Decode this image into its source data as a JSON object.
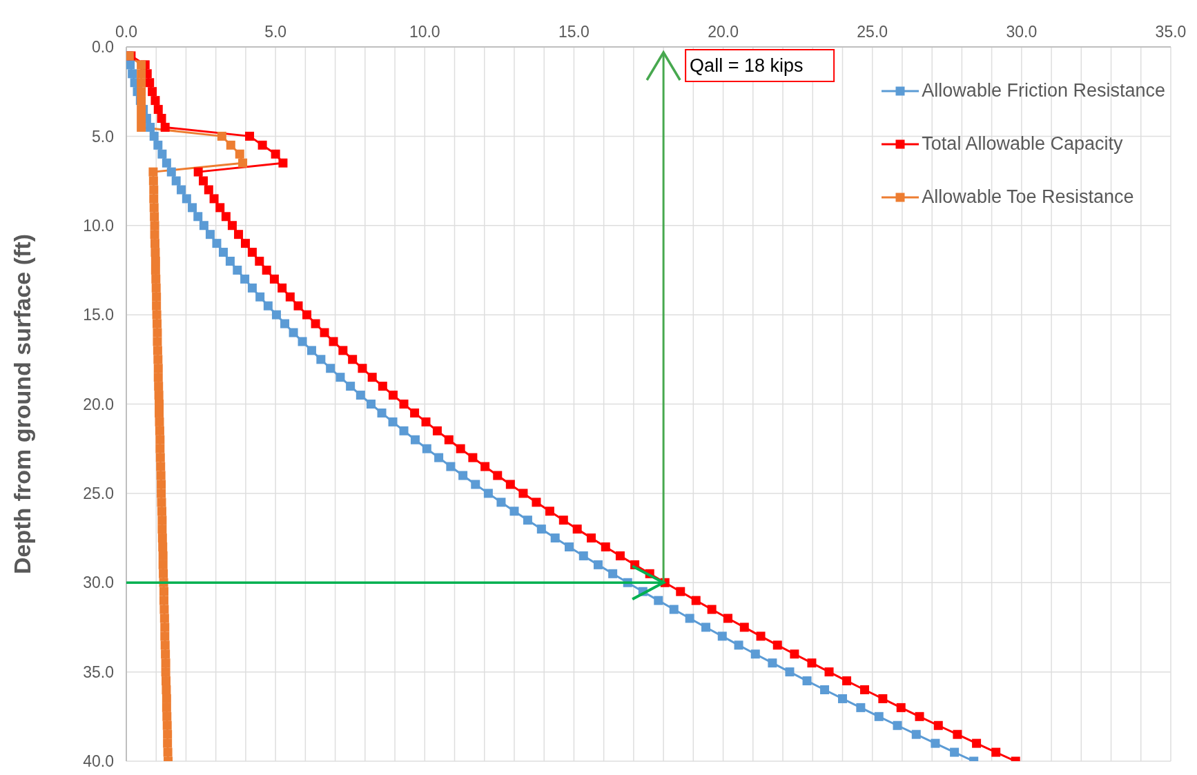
{
  "chart_data": {
    "type": "line",
    "orientation": "horizontal",
    "ylabel": "Depth from ground surface (ft)",
    "x": [
      0.5,
      1,
      1.5,
      2,
      2.5,
      3,
      3.5,
      4,
      4.5,
      5,
      5.5,
      6,
      6.5,
      7,
      7.5,
      8,
      8.5,
      9,
      9.5,
      10,
      10.5,
      11,
      11.5,
      12,
      12.5,
      13,
      13.5,
      14,
      14.5,
      15,
      15.5,
      16,
      16.5,
      17,
      17.5,
      18,
      18.5,
      19,
      19.5,
      20,
      20.5,
      21,
      21.5,
      22,
      22.5,
      23,
      23.5,
      24,
      24.5,
      25,
      25.5,
      26,
      26.5,
      27,
      27.5,
      28,
      28.5,
      29,
      29.5,
      30,
      30.5,
      31,
      31.5,
      32,
      32.5,
      33,
      33.5,
      34,
      34.5,
      35,
      35.5,
      36,
      36.5,
      37,
      37.5,
      38,
      38.5,
      39,
      39.5,
      40
    ],
    "series": [
      {
        "name": "Allowable Friction Resistance",
        "color": "#5b9bd5",
        "values": [
          0.06,
          0.13,
          0.2,
          0.28,
          0.37,
          0.47,
          0.57,
          0.68,
          0.8,
          0.93,
          1.06,
          1.2,
          1.35,
          1.51,
          1.67,
          1.84,
          2.02,
          2.21,
          2.4,
          2.6,
          2.81,
          3.03,
          3.25,
          3.48,
          3.72,
          3.97,
          4.22,
          4.48,
          4.75,
          5.03,
          5.31,
          5.6,
          5.9,
          6.21,
          6.52,
          6.84,
          7.17,
          7.51,
          7.85,
          8.2,
          8.56,
          8.93,
          9.3,
          9.68,
          10.07,
          10.47,
          10.87,
          11.28,
          11.7,
          12.13,
          12.56,
          13.0,
          13.45,
          13.91,
          14.37,
          14.84,
          15.32,
          15.81,
          16.3,
          16.8,
          17.31,
          17.83,
          18.35,
          18.88,
          19.42,
          19.97,
          20.52,
          21.08,
          21.65,
          22.23,
          22.81,
          23.4,
          24.0,
          24.61,
          25.22,
          25.84,
          26.47,
          27.11,
          27.75,
          28.4
        ]
      },
      {
        "name": "Total Allowable Capacity",
        "color": "#ff0000",
        "values": [
          0.16,
          0.63,
          0.7,
          0.78,
          0.87,
          0.97,
          1.07,
          1.18,
          1.3,
          4.13,
          4.56,
          5.0,
          5.25,
          2.41,
          2.58,
          2.76,
          2.94,
          3.14,
          3.34,
          3.55,
          3.76,
          3.99,
          4.22,
          4.46,
          4.7,
          4.96,
          5.22,
          5.49,
          5.76,
          6.05,
          6.34,
          6.64,
          6.94,
          7.26,
          7.58,
          7.91,
          8.24,
          8.59,
          8.94,
          9.3,
          9.66,
          10.04,
          10.42,
          10.81,
          11.2,
          11.61,
          12.02,
          12.44,
          12.87,
          13.3,
          13.74,
          14.19,
          14.65,
          15.11,
          15.58,
          16.06,
          16.55,
          17.04,
          17.54,
          18.05,
          18.57,
          19.09,
          19.62,
          20.16,
          20.71,
          21.26,
          21.82,
          22.39,
          22.97,
          23.55,
          24.14,
          24.74,
          25.35,
          25.96,
          26.58,
          27.21,
          27.85,
          28.49,
          29.14,
          29.8
        ]
      },
      {
        "name": "Allowable Toe Resistance",
        "color": "#ed7d31",
        "values": [
          0.1,
          0.5,
          0.5,
          0.5,
          0.5,
          0.5,
          0.5,
          0.5,
          0.5,
          3.2,
          3.5,
          3.8,
          3.9,
          0.9,
          0.91,
          0.92,
          0.92,
          0.93,
          0.94,
          0.95,
          0.95,
          0.96,
          0.97,
          0.98,
          0.98,
          0.99,
          1.0,
          1.01,
          1.01,
          1.02,
          1.03,
          1.04,
          1.04,
          1.05,
          1.06,
          1.07,
          1.07,
          1.08,
          1.09,
          1.1,
          1.1,
          1.11,
          1.12,
          1.13,
          1.13,
          1.14,
          1.15,
          1.16,
          1.17,
          1.17,
          1.18,
          1.19,
          1.2,
          1.2,
          1.21,
          1.22,
          1.23,
          1.23,
          1.24,
          1.25,
          1.26,
          1.26,
          1.27,
          1.28,
          1.29,
          1.29,
          1.3,
          1.31,
          1.32,
          1.32,
          1.33,
          1.34,
          1.35,
          1.35,
          1.36,
          1.37,
          1.38,
          1.38,
          1.39,
          1.4
        ]
      }
    ],
    "xlim": [
      0,
      35
    ],
    "xticks": [
      {
        "value": 0,
        "label": "0.0"
      },
      {
        "value": 1,
        "label": null
      },
      {
        "value": 2,
        "label": null
      },
      {
        "value": 3,
        "label": null
      },
      {
        "value": 4,
        "label": null
      },
      {
        "value": 5,
        "label": "5.0"
      },
      {
        "value": 6,
        "label": null
      },
      {
        "value": 7,
        "label": null
      },
      {
        "value": 8,
        "label": null
      },
      {
        "value": 9,
        "label": null
      },
      {
        "value": 10,
        "label": "10.0"
      },
      {
        "value": 11,
        "label": null
      },
      {
        "value": 12,
        "label": null
      },
      {
        "value": 13,
        "label": null
      },
      {
        "value": 14,
        "label": null
      },
      {
        "value": 15,
        "label": "15.0"
      },
      {
        "value": 16,
        "label": null
      },
      {
        "value": 17,
        "label": null
      },
      {
        "value": 18,
        "label": null
      },
      {
        "value": 19,
        "label": null
      },
      {
        "value": 20,
        "label": "20.0"
      },
      {
        "value": 21,
        "label": null
      },
      {
        "value": 22,
        "label": null
      },
      {
        "value": 23,
        "label": null
      },
      {
        "value": 24,
        "label": null
      },
      {
        "value": 25,
        "label": "25.0"
      },
      {
        "value": 26,
        "label": null
      },
      {
        "value": 27,
        "label": null
      },
      {
        "value": 28,
        "label": null
      },
      {
        "value": 29,
        "label": null
      },
      {
        "value": 30,
        "label": "30.0"
      },
      {
        "value": 31,
        "label": null
      },
      {
        "value": 32,
        "label": null
      },
      {
        "value": 33,
        "label": null
      },
      {
        "value": 34,
        "label": null
      },
      {
        "value": 35,
        "label": "35.0"
      }
    ],
    "ylim": [
      40,
      0
    ],
    "yticks": [
      {
        "value": 0,
        "label": "0.0"
      },
      {
        "value": 5,
        "label": "5.0"
      },
      {
        "value": 10,
        "label": "10.0"
      },
      {
        "value": 15,
        "label": "15.0"
      },
      {
        "value": 20,
        "label": "20.0"
      },
      {
        "value": 25,
        "label": "25.0"
      },
      {
        "value": 30,
        "label": "30.0"
      },
      {
        "value": 35,
        "label": "35.0"
      },
      {
        "value": 40,
        "label": "40.0"
      }
    ],
    "ref_lines": [
      {
        "axis": "x",
        "value": 18,
        "label": "Qall = 18 kips",
        "color": "#47a84f"
      },
      {
        "axis": "y",
        "value": 30,
        "color": "#00b050"
      }
    ],
    "grid": true,
    "legend": "top right",
    "marker": "square",
    "line_style": "solid"
  }
}
